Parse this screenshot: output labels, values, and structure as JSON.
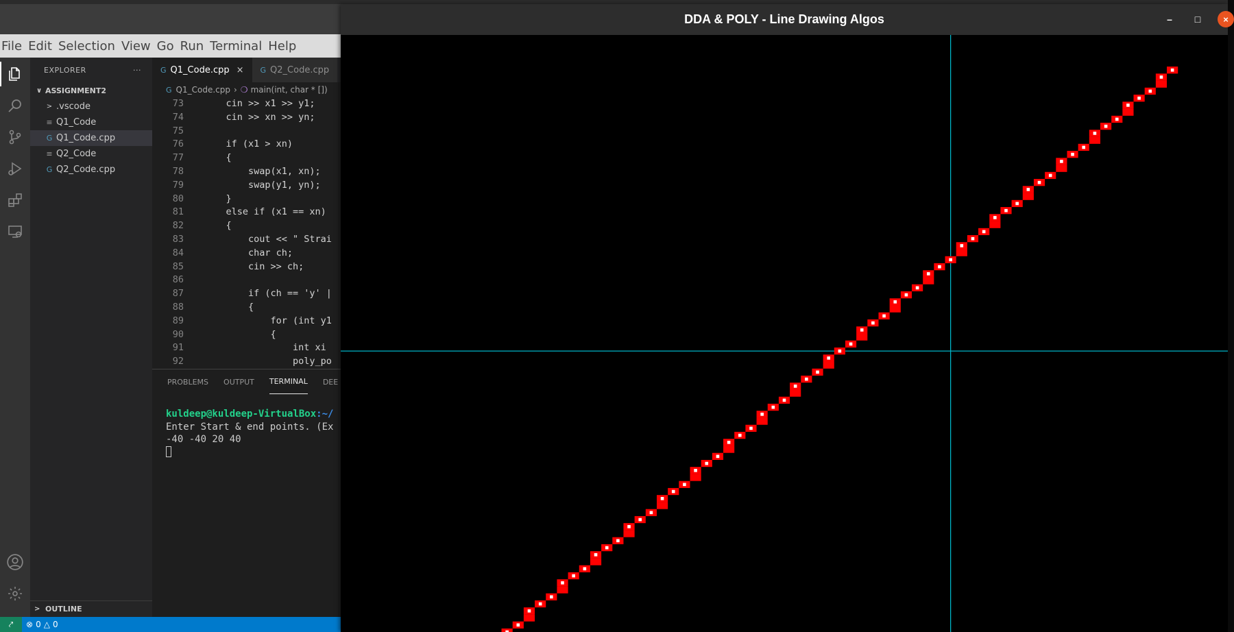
{
  "vscode": {
    "menu": [
      "File",
      "Edit",
      "Selection",
      "View",
      "Go",
      "Run",
      "Terminal",
      "Help"
    ],
    "activity_icons": [
      "files-icon",
      "search-icon",
      "source-control-icon",
      "run-debug-icon",
      "extensions-icon",
      "remote-explorer-icon",
      "account-icon",
      "settings-gear-icon"
    ],
    "sidebar": {
      "title": "EXPLORER",
      "more": "···",
      "folder": "ASSIGNMENT2",
      "items": [
        {
          "label": ".vscode",
          "icon": "folder-chevron-icon"
        },
        {
          "label": "Q1_Code",
          "icon": "text-file-icon"
        },
        {
          "label": "Q1_Code.cpp",
          "icon": "cpp-file-icon",
          "selected": true
        },
        {
          "label": "Q2_Code",
          "icon": "text-file-icon"
        },
        {
          "label": "Q2_Code.cpp",
          "icon": "cpp-file-icon"
        }
      ],
      "outline": "OUTLINE"
    },
    "tabs": [
      {
        "label": "Q1_Code.cpp",
        "active": true,
        "close": "×"
      },
      {
        "label": "Q2_Code.cpp",
        "active": false
      }
    ],
    "breadcrumb": {
      "file": "Q1_Code.cpp",
      "symbol": "main(int, char * [])"
    },
    "code_lines": [
      {
        "n": "73",
        "t": "    cin >> x1 >> y1;"
      },
      {
        "n": "74",
        "t": "    cin >> xn >> yn;"
      },
      {
        "n": "75",
        "t": ""
      },
      {
        "n": "76",
        "t": "    if (x1 > xn)"
      },
      {
        "n": "77",
        "t": "    {"
      },
      {
        "n": "78",
        "t": "        swap(x1, xn);"
      },
      {
        "n": "79",
        "t": "        swap(y1, yn);"
      },
      {
        "n": "80",
        "t": "    }"
      },
      {
        "n": "81",
        "t": "    else if (x1 == xn)"
      },
      {
        "n": "82",
        "t": "    {"
      },
      {
        "n": "83",
        "t": "        cout << \" Strai"
      },
      {
        "n": "84",
        "t": "        char ch;"
      },
      {
        "n": "85",
        "t": "        cin >> ch;"
      },
      {
        "n": "86",
        "t": ""
      },
      {
        "n": "87",
        "t": "        if (ch == 'y' |"
      },
      {
        "n": "88",
        "t": "        {"
      },
      {
        "n": "89",
        "t": "            for (int y1"
      },
      {
        "n": "90",
        "t": "            {"
      },
      {
        "n": "91",
        "t": "                int xi"
      },
      {
        "n": "92",
        "t": "                poly_po"
      }
    ],
    "panel_tabs": [
      "PROBLEMS",
      "OUTPUT",
      "TERMINAL",
      "DEE"
    ],
    "terminal": {
      "prompt_user": "kuldeep@kuldeep-VirtualBox",
      "prompt_path": ":~/",
      "line2": "Enter Start & end points. (Ex",
      "line3": "-40 -40 20 40"
    },
    "status": {
      "remote": "⤤",
      "errors": "0",
      "warnings": "0"
    }
  },
  "graphics_window": {
    "title": "DDA & POLY - Line Drawing Algos",
    "buttons": {
      "minimize": "–",
      "maximize": "□",
      "close": "×"
    },
    "colors": {
      "background": "#000000",
      "axes": "#00b4c8",
      "dda_pixels": "#ff0000",
      "poly_pixels": "#ffffff"
    }
  },
  "chart_data": {
    "type": "scatter",
    "title": "",
    "description_points": "Rasterized line from (-40,-40) to (20,40) drawn with two algorithms",
    "start": [
      -40,
      -40
    ],
    "end": [
      20,
      40
    ],
    "xlim": [
      -55,
      25
    ],
    "ylim": [
      -40,
      45
    ],
    "series": [
      {
        "name": "",
        "color": "#ff0000",
        "style": "filled-square"
      },
      {
        "name": "",
        "color": "#ffffff",
        "style": "small-square"
      }
    ],
    "grid": false
  }
}
